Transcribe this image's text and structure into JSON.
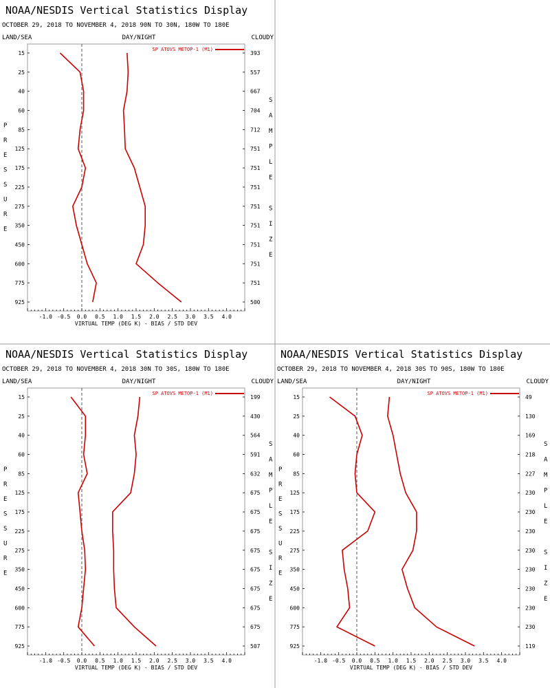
{
  "colors": {
    "line": "#cc0000",
    "axis": "#000000",
    "frame": "#999999",
    "zero": "#555555"
  },
  "chart_data": [
    {
      "type": "line",
      "title": "NOAA/NESDIS Vertical Statistics Display",
      "subtitle": "OCTOBER 29, 2018 TO NOVEMBER 4, 2018  90N TO 30N, 180W TO 180E",
      "label_left": "LAND/SEA",
      "label_center": "DAY/NIGHT",
      "label_right": "CLOUDY",
      "ylabel": "PRESSURE",
      "y2label": "SAMPLE SIZE",
      "xlabel": "VIRTUAL TEMP (DEG K) - BIAS / STD DEV",
      "xlim": [
        -1.5,
        4.5
      ],
      "xticks": [
        "-1.0",
        "-0.5",
        "0.0",
        "0.5",
        "1.0",
        "1.5",
        "2.0",
        "2.5",
        "3.0",
        "3.5",
        "4.0"
      ],
      "pressure_levels": [
        "15",
        "25",
        "40",
        "60",
        "85",
        "125",
        "175",
        "225",
        "275",
        "350",
        "450",
        "600",
        "775",
        "925"
      ],
      "sample_size": [
        "393",
        "557",
        "667",
        "704",
        "712",
        "751",
        "751",
        "751",
        "751",
        "751",
        "751",
        "751",
        "751",
        "500"
      ],
      "legend": "SP ATOVS METOP-1 (M1)",
      "series": [
        {
          "name": "BIAS",
          "values": [
            -0.6,
            -0.05,
            0.05,
            0.05,
            -0.05,
            -0.1,
            0.1,
            0.0,
            -0.25,
            -0.15,
            0.0,
            0.15,
            0.4,
            0.3
          ]
        },
        {
          "name": "STD DEV",
          "values": [
            1.25,
            1.28,
            1.25,
            1.15,
            1.18,
            1.2,
            1.45,
            1.6,
            1.75,
            1.75,
            1.7,
            1.5,
            2.1,
            2.75
          ]
        }
      ]
    },
    {
      "type": "line",
      "title": "NOAA/NESDIS Vertical Statistics Display",
      "subtitle": "OCTOBER 29, 2018 TO NOVEMBER 4, 2018  30N TO 30S, 180W TO 180E",
      "label_left": "LAND/SEA",
      "label_center": "DAY/NIGHT",
      "label_right": "CLOUDY",
      "ylabel": "PRESSURE",
      "y2label": "SAMPLE SIZE",
      "xlabel": "VIRTUAL TEMP (DEG K) - BIAS / STD DEV",
      "xlim": [
        -1.5,
        4.5
      ],
      "xticks": [
        "-1.0",
        "-0.5",
        "0.0",
        "0.5",
        "1.0",
        "1.5",
        "2.0",
        "2.5",
        "3.0",
        "3.5",
        "4.0"
      ],
      "pressure_levels": [
        "15",
        "25",
        "40",
        "60",
        "85",
        "125",
        "175",
        "225",
        "275",
        "350",
        "450",
        "600",
        "775",
        "925"
      ],
      "sample_size": [
        "199",
        "430",
        "564",
        "591",
        "632",
        "675",
        "675",
        "675",
        "675",
        "675",
        "675",
        "675",
        "675",
        "507"
      ],
      "legend": "SP ATOVS METOP-1 (M1)",
      "series": [
        {
          "name": "BIAS",
          "values": [
            -0.3,
            0.1,
            0.1,
            0.05,
            0.15,
            -0.1,
            -0.05,
            0.0,
            0.08,
            0.1,
            0.05,
            0.0,
            -0.1,
            0.35
          ]
        },
        {
          "name": "STD DEV",
          "values": [
            1.6,
            1.55,
            1.45,
            1.5,
            1.45,
            1.35,
            0.85,
            0.85,
            0.88,
            0.88,
            0.9,
            0.95,
            1.45,
            2.05
          ]
        }
      ]
    },
    {
      "type": "line",
      "title": "NOAA/NESDIS Vertical Statistics Display",
      "subtitle": "OCTOBER 29, 2018 TO NOVEMBER 4, 2018  30S TO 90S, 180W TO 180E",
      "label_left": "LAND/SEA",
      "label_center": "DAY/NIGHT",
      "label_right": "CLOUDY",
      "ylabel": "PRESSURE",
      "y2label": "SAMPLE SIZE",
      "xlabel": "VIRTUAL TEMP (DEG K) - BIAS / STD DEV",
      "xlim": [
        -1.5,
        4.5
      ],
      "xticks": [
        "-1.0",
        "-0.5",
        "0.0",
        "0.5",
        "1.0",
        "1.5",
        "2.0",
        "2.5",
        "3.0",
        "3.5",
        "4.0"
      ],
      "pressure_levels": [
        "15",
        "25",
        "40",
        "60",
        "85",
        "125",
        "175",
        "225",
        "275",
        "350",
        "450",
        "600",
        "775",
        "925"
      ],
      "sample_size": [
        "49",
        "130",
        "169",
        "218",
        "227",
        "230",
        "230",
        "230",
        "230",
        "230",
        "230",
        "230",
        "230",
        "119"
      ],
      "legend": "SP ATOVS METOP-1 (M1)",
      "series": [
        {
          "name": "BIAS",
          "values": [
            -0.75,
            -0.05,
            0.15,
            0.0,
            -0.05,
            0.0,
            0.5,
            0.3,
            -0.4,
            -0.35,
            -0.25,
            -0.2,
            -0.55,
            0.5
          ]
        },
        {
          "name": "STD DEV",
          "values": [
            0.9,
            0.85,
            1.0,
            1.1,
            1.2,
            1.35,
            1.65,
            1.65,
            1.55,
            1.25,
            1.4,
            1.6,
            2.2,
            3.25
          ]
        }
      ]
    }
  ]
}
